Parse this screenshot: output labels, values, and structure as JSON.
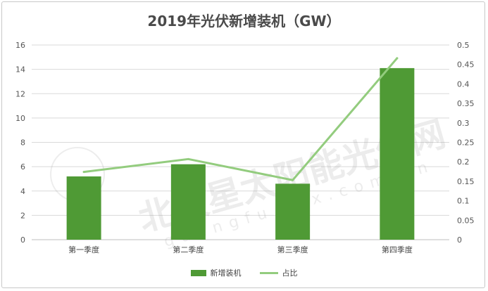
{
  "colors": {
    "bar": "#4f9a35",
    "line": "#93cc7e",
    "grid": "#d9d9d9",
    "axis": "#bfbfbf"
  },
  "watermark": {
    "text": "北极星太阳能光伏网",
    "sub": "guangfu.bjx.com.cn"
  },
  "chart_data": {
    "type": "bar",
    "title": "2019年光伏新增装机（GW）",
    "categories": [
      "第一季度",
      "第二季度",
      "第三季度",
      "第四季度"
    ],
    "series": [
      {
        "name": "新增装机",
        "type": "bar",
        "axis": "left",
        "values": [
          5.2,
          6.2,
          4.6,
          14.1
        ]
      },
      {
        "name": "占比",
        "type": "line",
        "axis": "right",
        "values": [
          0.174,
          0.207,
          0.153,
          0.466
        ]
      }
    ],
    "y_left": {
      "min": 0,
      "max": 16,
      "ticks": [
        "0",
        "2",
        "4",
        "6",
        "8",
        "10",
        "12",
        "14",
        "16"
      ]
    },
    "y_right": {
      "min": 0,
      "max": 0.5,
      "ticks": [
        "0",
        "0.05",
        "0.1",
        "0.15",
        "0.2",
        "0.25",
        "0.3",
        "0.35",
        "0.4",
        "0.45",
        "0.5"
      ]
    },
    "grid": true,
    "legend": "bottom"
  }
}
